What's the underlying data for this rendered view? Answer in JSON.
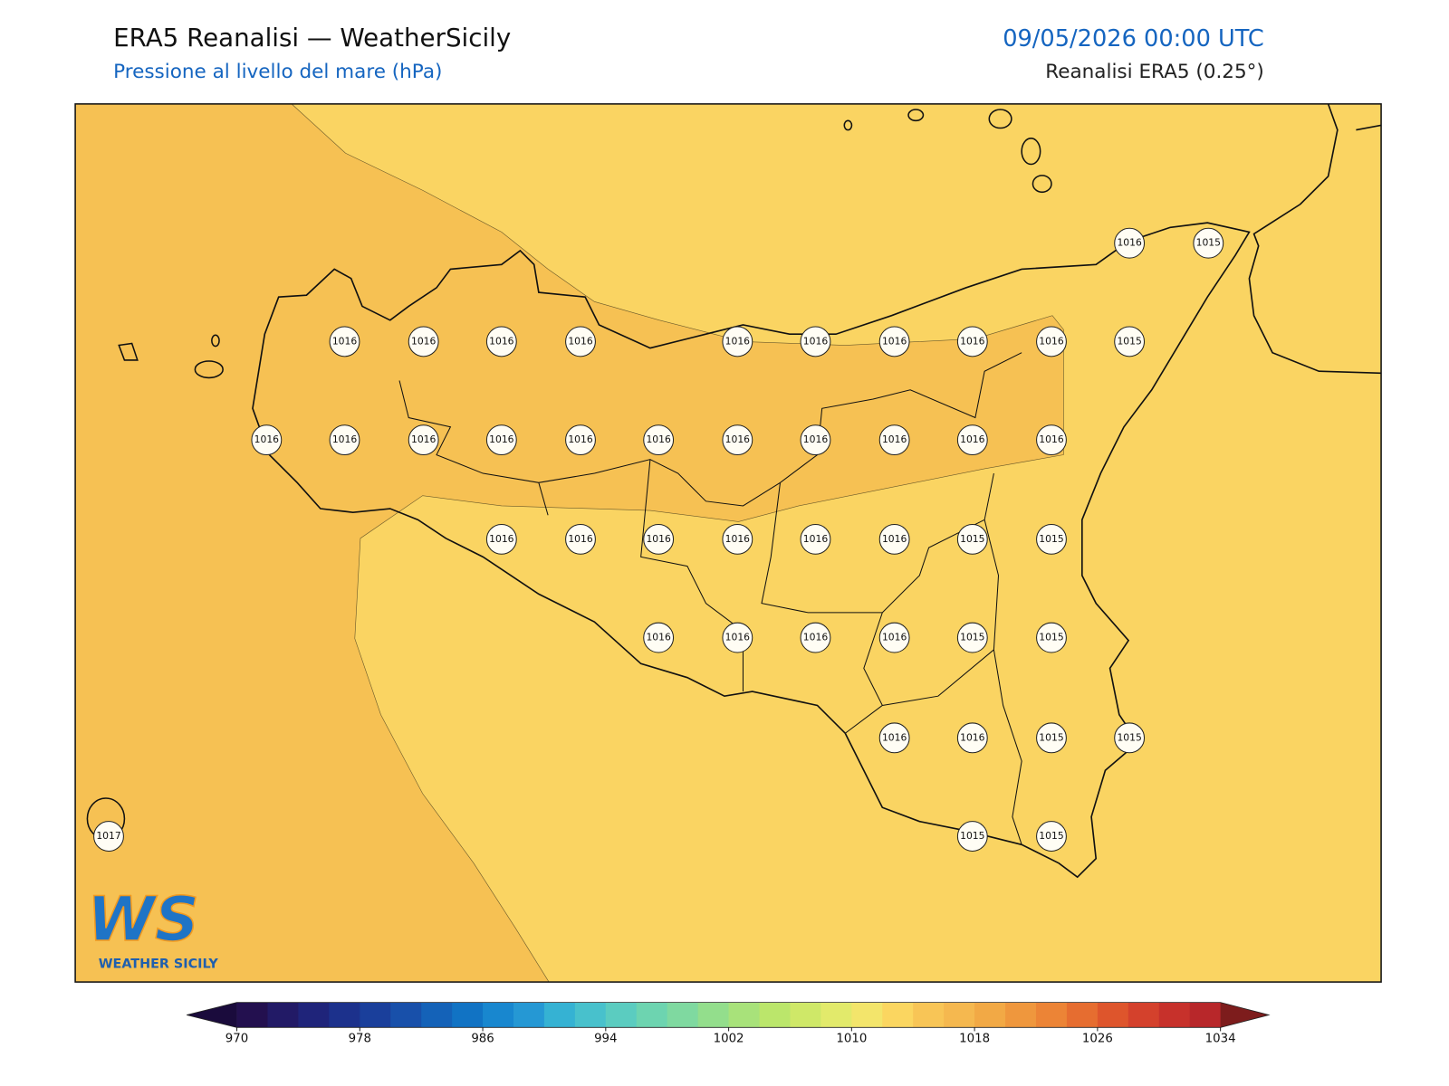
{
  "header": {
    "title": "ERA5 Reanalisi — WeatherSicily",
    "subtitle": "Pressione al livello del mare (hPa)",
    "datetime": "09/05/2026 00:00 UTC",
    "source": "Reanalisi ERA5 (0.25°)"
  },
  "stations": [
    1016,
    1015,
    1016,
    1016,
    1016,
    1016,
    1016,
    1016,
    1016,
    1016,
    1016,
    1015,
    1016,
    1016,
    1016,
    1016,
    1016,
    1016,
    1016,
    1016,
    1016,
    1016,
    1016,
    1016,
    1016,
    1016,
    1016,
    1016,
    1016,
    1015,
    1015,
    1016,
    1016,
    1016,
    1016,
    1015,
    1015,
    1016,
    1016,
    1015,
    1015,
    1015,
    1015,
    1017
  ],
  "colorbar": {
    "range": [
      970,
      1034
    ],
    "ticks": [
      970,
      978,
      986,
      994,
      1002,
      1010,
      1018,
      1026,
      1034
    ],
    "under_color": "#1a0b3c",
    "over_color": "#7d1c1c",
    "colors": [
      "#23104f",
      "#221a66",
      "#1f247a",
      "#1c318c",
      "#1a3f9b",
      "#1850aa",
      "#1462b8",
      "#1173c4",
      "#1887cf",
      "#2598d4",
      "#35b2d3",
      "#48c1cc",
      "#5bccc0",
      "#6dd4b0",
      "#7fd9a0",
      "#93de8c",
      "#a8e27a",
      "#bbe66b",
      "#cfe868",
      "#e2ea6b",
      "#f3e56b",
      "#fbd660",
      "#f8c556",
      "#f5b84f",
      "#f2a945",
      "#ef973d",
      "#ec8436",
      "#e66d30",
      "#de552c",
      "#d4412c",
      "#c7312b",
      "#b8272a"
    ]
  },
  "logo": {
    "mark": "WS",
    "text": "WEATHER SICILY"
  }
}
